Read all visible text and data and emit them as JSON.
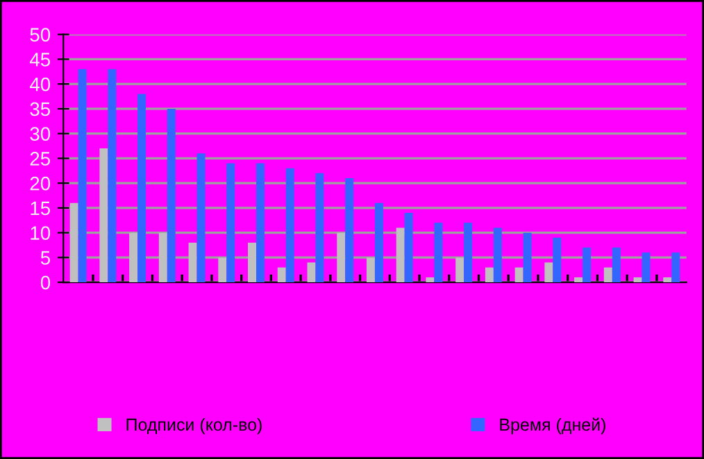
{
  "chart_data": {
    "type": "bar",
    "categories": [
      null,
      null,
      null,
      null,
      null,
      null,
      null,
      null,
      null,
      null,
      null,
      null,
      null,
      null,
      null,
      null,
      null,
      null,
      null,
      null,
      null
    ],
    "series": [
      {
        "name": "Подписи (кол-во)",
        "color": "#c0c0c0",
        "values": [
          16,
          27,
          10,
          10,
          8,
          5,
          8,
          3,
          4,
          10,
          5,
          11,
          1,
          5,
          3,
          3,
          4,
          1,
          3,
          1,
          1
        ]
      },
      {
        "name": "Время (дней)",
        "color": "#3366ff",
        "values": [
          43,
          43,
          38,
          35,
          26,
          24,
          24,
          23,
          22,
          21,
          16,
          14,
          12,
          12,
          11,
          10,
          9,
          7,
          7,
          6,
          6
        ]
      }
    ],
    "ylim": [
      0,
      50
    ],
    "yticks": [
      0,
      5,
      10,
      15,
      20,
      25,
      30,
      35,
      40,
      45,
      50
    ],
    "grid": "y",
    "legend": "bottom"
  }
}
